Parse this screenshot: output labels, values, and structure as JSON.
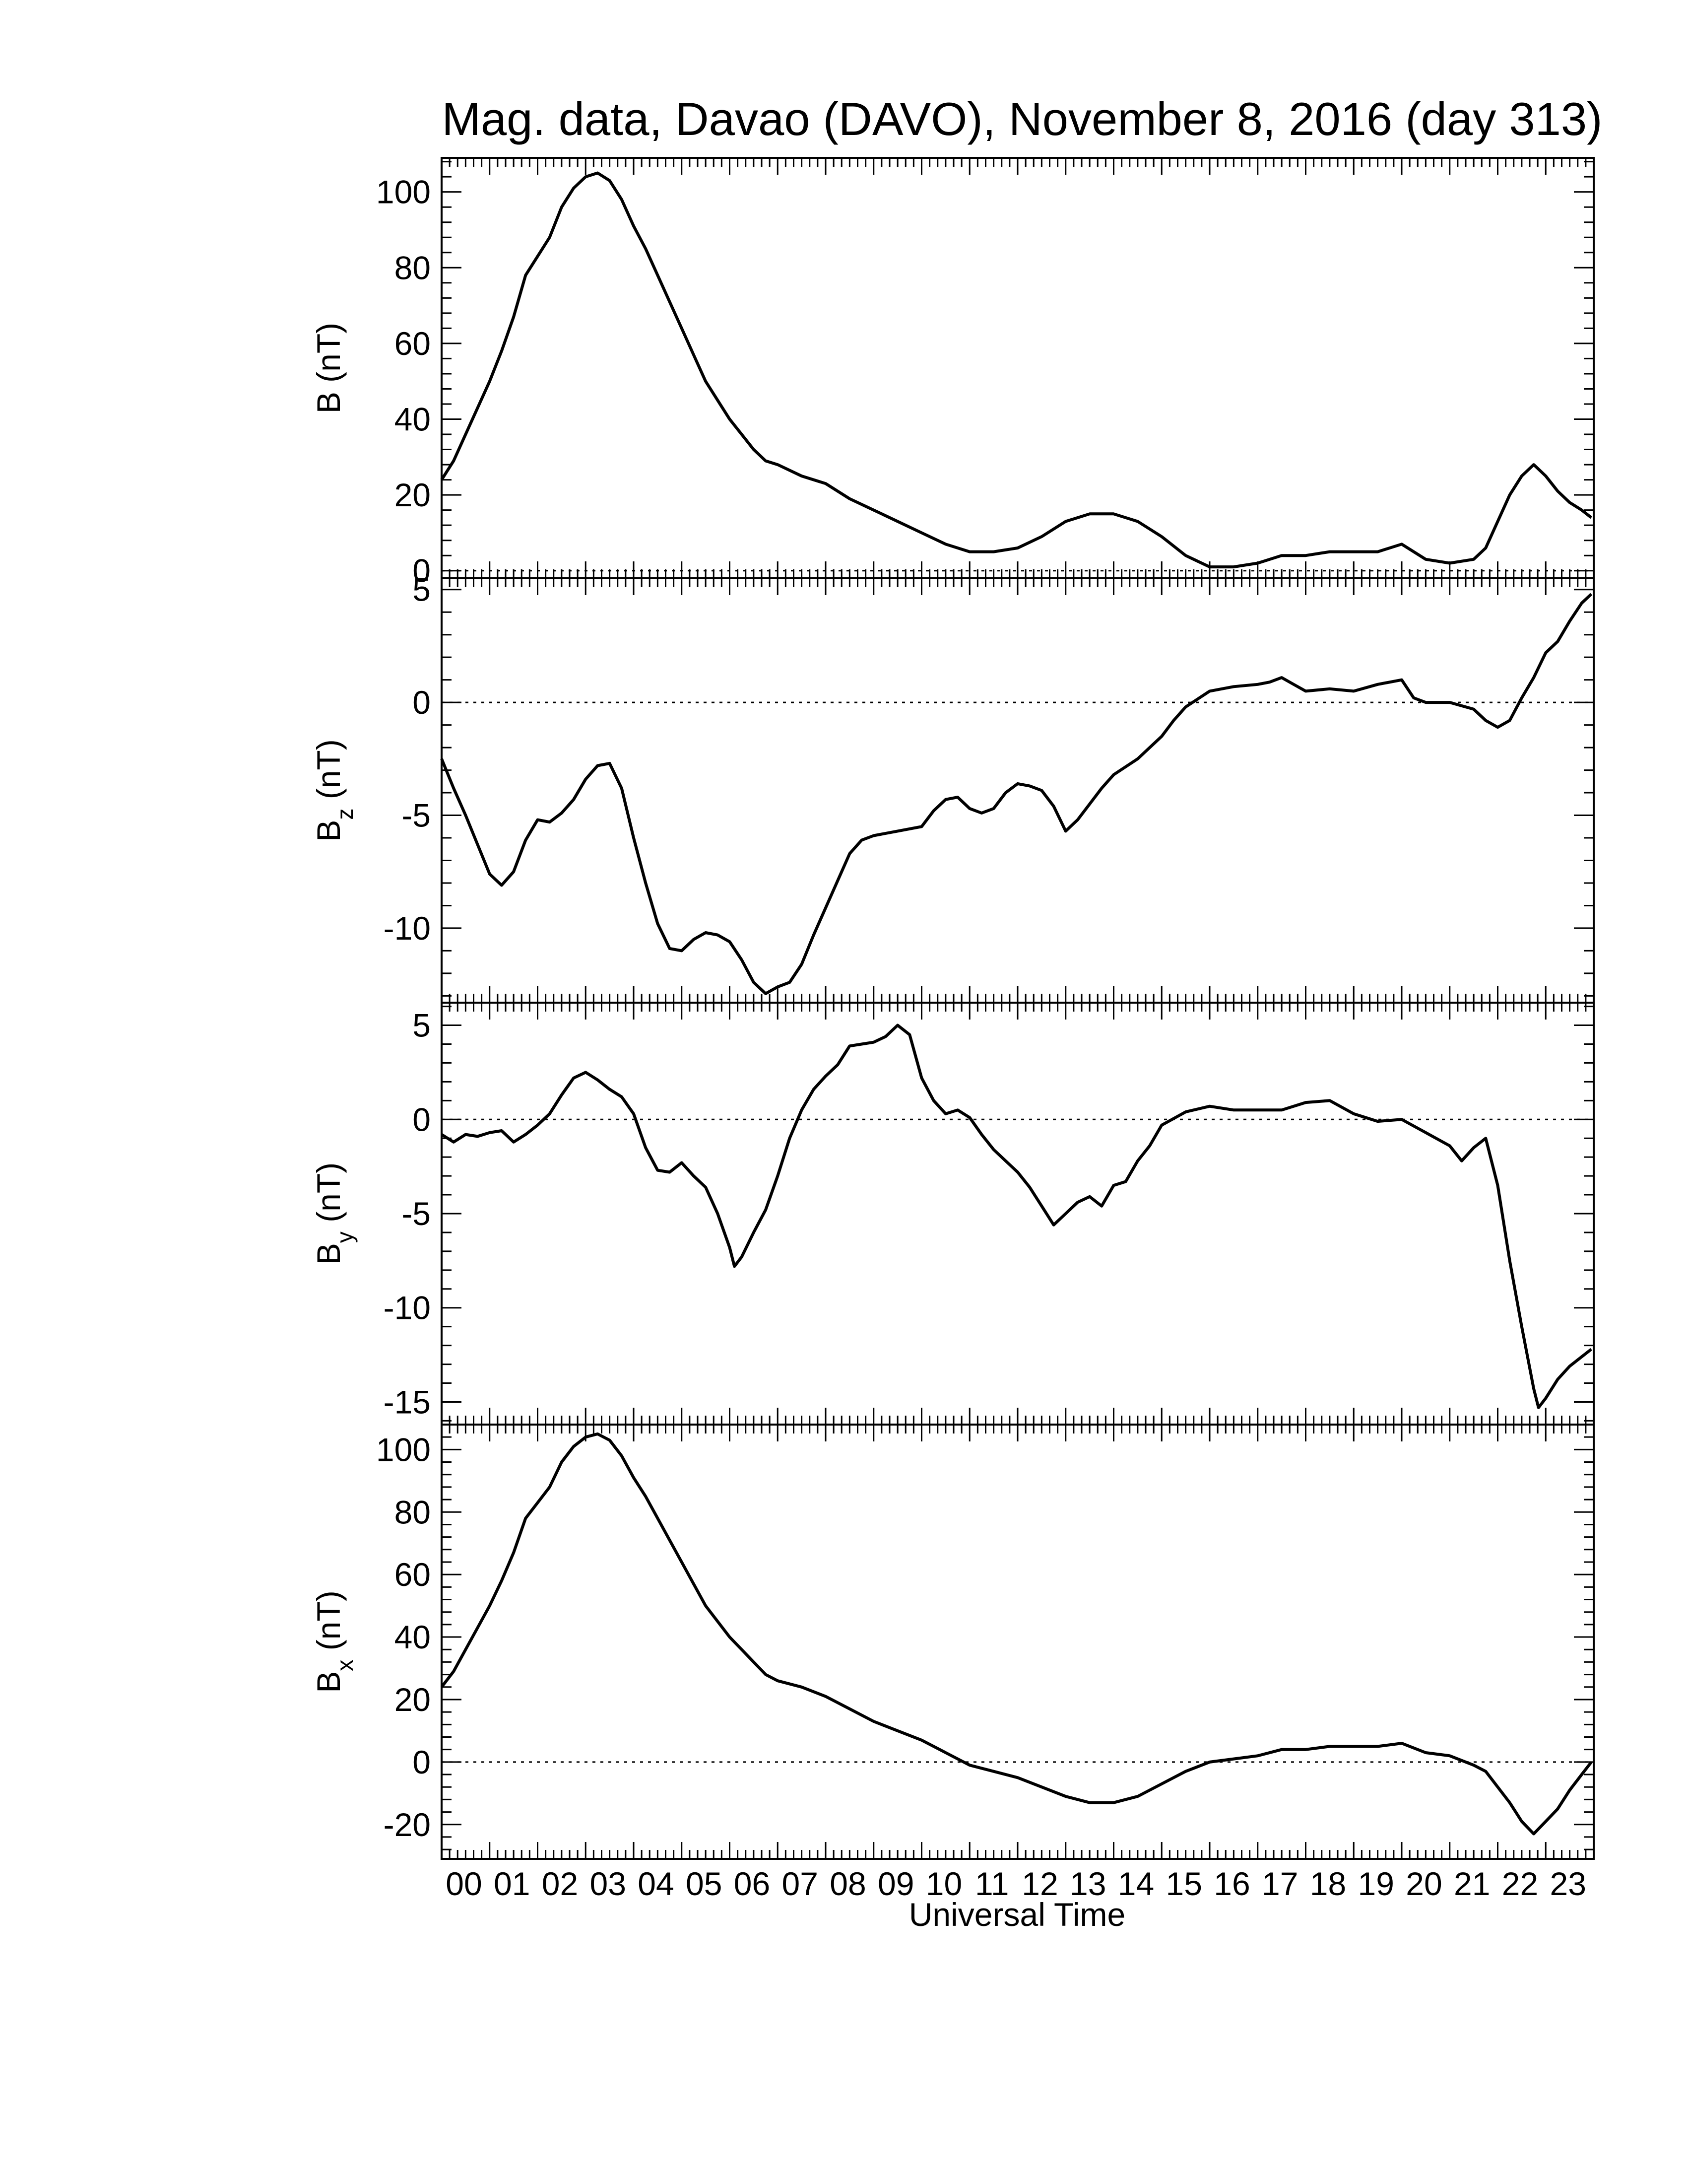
{
  "title": "Mag. data, Davao (DAVO), November 8, 2016 (day 313)",
  "xlabel": "Universal Time",
  "x_tick_labels": [
    "00",
    "01",
    "02",
    "03",
    "04",
    "05",
    "06",
    "07",
    "08",
    "09",
    "10",
    "11",
    "12",
    "13",
    "14",
    "15",
    "16",
    "17",
    "18",
    "19",
    "20",
    "21",
    "22",
    "23"
  ],
  "colors": {
    "line": "#000000",
    "frame": "#000000",
    "zero_line": "#000000",
    "background": "#ffffff"
  },
  "chart_data": [
    {
      "type": "line",
      "panel": "B",
      "ylabel": "B (nT)",
      "ylabel_main": "B (nT)",
      "ylabel_sub": "",
      "ylabel_tail": "",
      "ylim": [
        -2,
        109
      ],
      "yticks": [
        0,
        20,
        40,
        60,
        80,
        100
      ],
      "ytick_labels": [
        "0",
        "20",
        "40",
        "60",
        "80",
        "100"
      ],
      "zero_line": true,
      "x": [
        0,
        0.25,
        0.5,
        0.75,
        1,
        1.25,
        1.5,
        1.75,
        2,
        2.25,
        2.5,
        2.75,
        3,
        3.25,
        3.5,
        3.75,
        4,
        4.25,
        4.5,
        4.75,
        5,
        5.25,
        5.5,
        5.75,
        6,
        6.25,
        6.5,
        6.75,
        7,
        7.5,
        8,
        8.5,
        9,
        9.5,
        10,
        10.5,
        11,
        11.5,
        12,
        12.5,
        13,
        13.5,
        14,
        14.5,
        15,
        15.5,
        16,
        16.5,
        17,
        17.5,
        18,
        18.5,
        19,
        19.5,
        20,
        20.5,
        21,
        21.5,
        21.75,
        22,
        22.25,
        22.5,
        22.75,
        23,
        23.25,
        23.5,
        23.75,
        23.95
      ],
      "values": [
        24,
        29,
        36,
        43,
        50,
        58,
        67,
        78,
        83,
        88,
        96,
        101,
        104,
        105,
        103,
        98,
        91,
        85,
        78,
        71,
        64,
        57,
        50,
        45,
        40,
        36,
        32,
        29,
        28,
        25,
        23,
        19,
        16,
        13,
        10,
        7,
        5,
        5,
        6,
        9,
        13,
        15,
        15,
        13,
        9,
        4,
        1,
        1,
        2,
        4,
        4,
        5,
        5,
        5,
        7,
        3,
        2,
        3,
        6,
        13,
        20,
        25,
        28,
        25,
        21,
        18,
        16,
        14
      ]
    },
    {
      "type": "line",
      "panel": "Bz",
      "ylabel": "Bz (nT)",
      "ylabel_main": "B",
      "ylabel_sub": "z",
      "ylabel_tail": " (nT)",
      "ylim": [
        -13.3,
        5.5
      ],
      "yticks": [
        -10,
        -5,
        0,
        5
      ],
      "ytick_labels": [
        "-10",
        "-5",
        "0",
        "5"
      ],
      "zero_line": true,
      "x": [
        0,
        0.25,
        0.5,
        0.75,
        1,
        1.25,
        1.5,
        1.75,
        2,
        2.25,
        2.5,
        2.75,
        3,
        3.25,
        3.5,
        3.75,
        4,
        4.25,
        4.5,
        4.75,
        5,
        5.25,
        5.5,
        5.75,
        6,
        6.25,
        6.5,
        6.75,
        7,
        7.25,
        7.5,
        7.75,
        8,
        8.25,
        8.5,
        8.75,
        9,
        9.5,
        10,
        10.25,
        10.5,
        10.75,
        11,
        11.25,
        11.5,
        11.75,
        12,
        12.25,
        12.5,
        12.75,
        13,
        13.25,
        13.5,
        13.75,
        14,
        14.5,
        15,
        15.25,
        15.5,
        16,
        16.5,
        17,
        17.25,
        17.5,
        17.75,
        18,
        18.5,
        19,
        19.5,
        20,
        20.25,
        20.5,
        21,
        21.5,
        21.75,
        22,
        22.25,
        22.5,
        22.75,
        23,
        23.25,
        23.5,
        23.75,
        23.95
      ],
      "values": [
        -2.5,
        -3.8,
        -5,
        -6.3,
        -7.6,
        -8.1,
        -7.5,
        -6.1,
        -5.2,
        -5.3,
        -4.9,
        -4.3,
        -3.4,
        -2.8,
        -2.7,
        -3.8,
        -6,
        -8,
        -9.8,
        -10.9,
        -11,
        -10.5,
        -10.2,
        -10.3,
        -10.6,
        -11.4,
        -12.4,
        -12.9,
        -12.6,
        -12.4,
        -11.6,
        -10.3,
        -9.1,
        -7.9,
        -6.7,
        -6.1,
        -5.9,
        -5.7,
        -5.5,
        -4.8,
        -4.3,
        -4.2,
        -4.7,
        -4.9,
        -4.7,
        -4,
        -3.6,
        -3.7,
        -3.9,
        -4.6,
        -5.7,
        -5.2,
        -4.5,
        -3.8,
        -3.2,
        -2.5,
        -1.5,
        -0.8,
        -0.2,
        0.5,
        0.7,
        0.8,
        0.9,
        1.1,
        0.8,
        0.5,
        0.6,
        0.5,
        0.8,
        1,
        0.2,
        0,
        0,
        -0.3,
        -0.8,
        -1.1,
        -0.8,
        0.2,
        1.1,
        2.2,
        2.7,
        3.6,
        4.4,
        4.8
      ]
    },
    {
      "type": "line",
      "panel": "By",
      "ylabel": "By (nT)",
      "ylabel_main": "B",
      "ylabel_sub": "y",
      "ylabel_tail": " (nT)",
      "ylim": [
        -16.2,
        6.2
      ],
      "yticks": [
        -15,
        -10,
        -5,
        0,
        5
      ],
      "ytick_labels": [
        "-15",
        "-10",
        "-5",
        "0",
        "5"
      ],
      "zero_line": true,
      "x": [
        0,
        0.25,
        0.5,
        0.75,
        1,
        1.25,
        1.5,
        1.75,
        2,
        2.25,
        2.5,
        2.75,
        3,
        3.25,
        3.5,
        3.75,
        4,
        4.25,
        4.5,
        4.75,
        5,
        5.25,
        5.5,
        5.75,
        6,
        6.1,
        6.25,
        6.5,
        6.75,
        7,
        7.25,
        7.5,
        7.75,
        8,
        8.25,
        8.5,
        8.75,
        9,
        9.25,
        9.5,
        9.75,
        10,
        10.25,
        10.5,
        10.75,
        11,
        11.25,
        11.5,
        11.75,
        12,
        12.25,
        12.5,
        12.75,
        13,
        13.25,
        13.5,
        13.75,
        14,
        14.25,
        14.5,
        14.75,
        15,
        15.5,
        16,
        16.5,
        17,
        17.5,
        18,
        18.5,
        19,
        19.5,
        20,
        20.5,
        21,
        21.25,
        21.5,
        21.75,
        22,
        22.25,
        22.5,
        22.75,
        22.85,
        23,
        23.25,
        23.5,
        23.75,
        23.95
      ],
      "values": [
        -0.8,
        -1.2,
        -0.8,
        -0.9,
        -0.7,
        -0.6,
        -1.2,
        -0.8,
        -0.3,
        0.3,
        1.3,
        2.2,
        2.5,
        2.1,
        1.6,
        1.2,
        0.3,
        -1.5,
        -2.7,
        -2.8,
        -2.3,
        -3,
        -3.6,
        -5,
        -6.8,
        -7.8,
        -7.3,
        -6,
        -4.8,
        -3,
        -1,
        0.5,
        1.6,
        2.3,
        2.9,
        3.9,
        4,
        4.1,
        4.4,
        5,
        4.5,
        2.2,
        1,
        0.3,
        0.5,
        0.1,
        -0.8,
        -1.6,
        -2.2,
        -2.8,
        -3.6,
        -4.6,
        -5.6,
        -5,
        -4.4,
        -4.1,
        -4.6,
        -3.5,
        -3.3,
        -2.2,
        -1.4,
        -0.3,
        0.4,
        0.7,
        0.5,
        0.5,
        0.5,
        0.9,
        1,
        0.3,
        -0.1,
        0,
        -0.7,
        -1.4,
        -2.2,
        -1.5,
        -1,
        -3.5,
        -7.5,
        -11,
        -14.3,
        -15.3,
        -14.8,
        -13.8,
        -13.1,
        -12.6,
        -12.2
      ]
    },
    {
      "type": "line",
      "panel": "Bx",
      "ylabel": "Bx (nT)",
      "ylabel_main": "B",
      "ylabel_sub": "x",
      "ylabel_tail": " (nT)",
      "ylim": [
        -31,
        108
      ],
      "yticks": [
        -20,
        0,
        20,
        40,
        60,
        80,
        100
      ],
      "ytick_labels": [
        "-20",
        "0",
        "20",
        "40",
        "60",
        "80",
        "100"
      ],
      "zero_line": true,
      "x": [
        0,
        0.25,
        0.5,
        0.75,
        1,
        1.25,
        1.5,
        1.75,
        2,
        2.25,
        2.5,
        2.75,
        3,
        3.25,
        3.5,
        3.75,
        4,
        4.25,
        4.5,
        4.75,
        5,
        5.25,
        5.5,
        5.75,
        6,
        6.25,
        6.5,
        6.75,
        7,
        7.5,
        8,
        8.5,
        9,
        9.5,
        10,
        10.5,
        11,
        11.5,
        12,
        12.5,
        13,
        13.5,
        14,
        14.5,
        15,
        15.5,
        16,
        16.5,
        17,
        17.5,
        18,
        18.5,
        19,
        19.5,
        20,
        20.5,
        21,
        21.5,
        21.75,
        22,
        22.25,
        22.5,
        22.75,
        23,
        23.25,
        23.5,
        23.75,
        23.95
      ],
      "values": [
        24,
        29,
        36,
        43,
        50,
        58,
        67,
        78,
        83,
        88,
        96,
        101,
        104,
        105,
        103,
        98,
        91,
        85,
        78,
        71,
        64,
        57,
        50,
        45,
        40,
        36,
        32,
        28,
        26,
        24,
        21,
        17,
        13,
        10,
        7,
        3,
        -1,
        -3,
        -5,
        -8,
        -11,
        -13,
        -13,
        -11,
        -7,
        -3,
        0,
        1,
        2,
        4,
        4,
        5,
        5,
        5,
        6,
        3,
        2,
        -1,
        -3,
        -8,
        -13,
        -19,
        -23,
        -19,
        -15,
        -9,
        -4,
        0
      ]
    }
  ]
}
